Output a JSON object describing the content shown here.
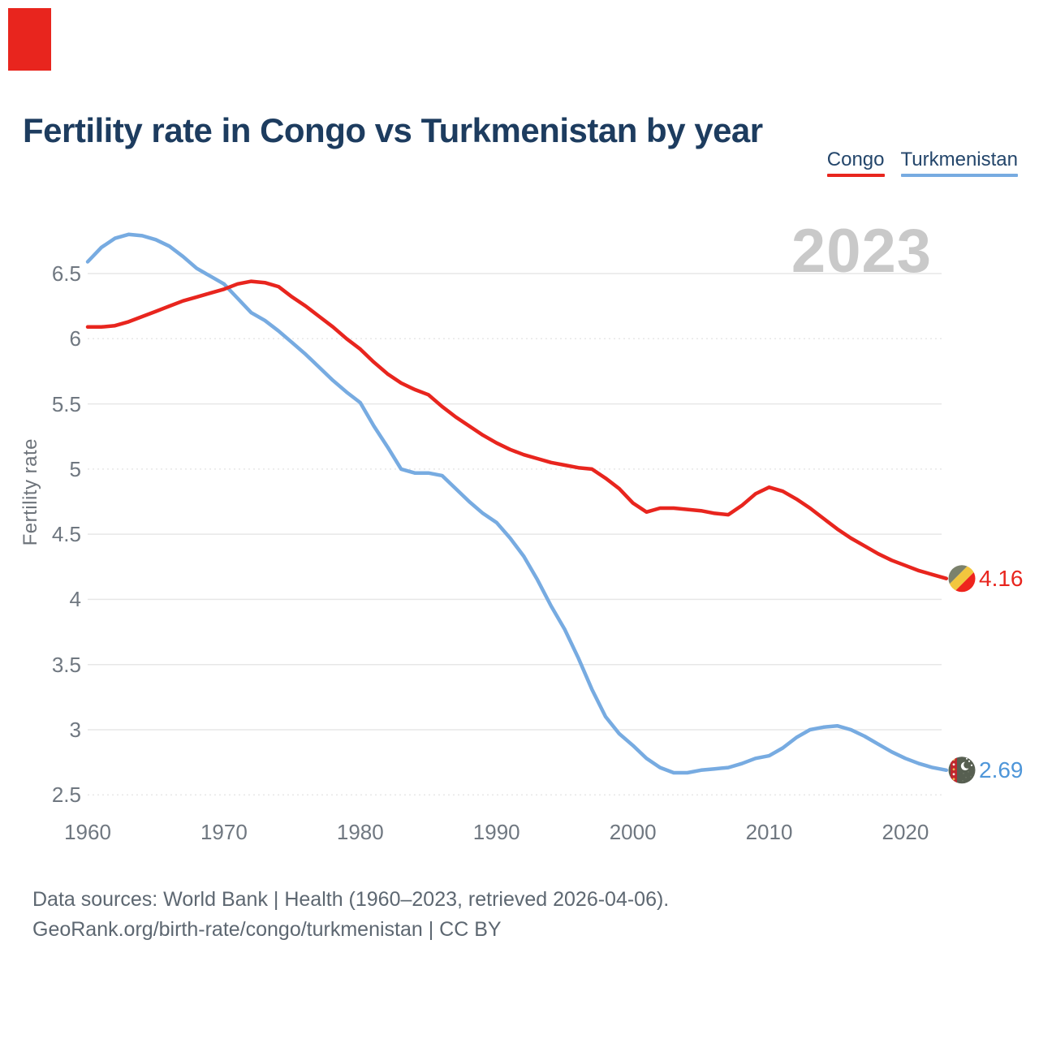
{
  "logo": {
    "color": "#e8251e"
  },
  "header": {
    "title": "Fertility rate in Congo vs Turkmenistan by year"
  },
  "legend": [
    {
      "label": "Congo",
      "color": "#e8251e"
    },
    {
      "label": "Turkmenistan",
      "color": "#77abe1"
    }
  ],
  "watermark": {
    "text": "2023"
  },
  "footer": {
    "line1": "Data sources: World Bank | Health (1960–2023, retrieved 2026-04-06).",
    "line2": "GeoRank.org/birth-rate/congo/turkmenistan | CC BY"
  },
  "chart_data": {
    "type": "line",
    "title": "Fertility rate in Congo vs Turkmenistan by year",
    "xlabel": "",
    "ylabel": "Fertility rate",
    "x_range": [
      1960,
      2023
    ],
    "ylim": [
      2.35,
      6.85
    ],
    "yticks": [
      "6.5",
      "6",
      "5.5",
      "5",
      "4.5",
      "4",
      "3.5",
      "3",
      "2.5"
    ],
    "dashed_yticks": [
      "6",
      "5",
      "2.5"
    ],
    "xticks": [
      1960,
      1970,
      1980,
      1990,
      2000,
      2010,
      2020
    ],
    "grid": "horizontal",
    "legend_position": "top-right",
    "x": [
      1960,
      1961,
      1962,
      1963,
      1964,
      1965,
      1966,
      1967,
      1968,
      1969,
      1970,
      1971,
      1972,
      1973,
      1974,
      1975,
      1976,
      1977,
      1978,
      1979,
      1980,
      1981,
      1982,
      1983,
      1984,
      1985,
      1986,
      1987,
      1988,
      1989,
      1990,
      1991,
      1992,
      1993,
      1994,
      1995,
      1996,
      1997,
      1998,
      1999,
      2000,
      2001,
      2002,
      2003,
      2004,
      2005,
      2006,
      2007,
      2008,
      2009,
      2010,
      2011,
      2012,
      2013,
      2014,
      2015,
      2016,
      2017,
      2018,
      2019,
      2020,
      2021,
      2022,
      2023
    ],
    "series": [
      {
        "name": "Congo",
        "color": "#e8251e",
        "label_color": "#e8251e",
        "end_label": "4.16",
        "values": [
          6.09,
          6.09,
          6.1,
          6.13,
          6.17,
          6.21,
          6.25,
          6.29,
          6.32,
          6.35,
          6.38,
          6.42,
          6.44,
          6.43,
          6.4,
          6.32,
          6.25,
          6.17,
          6.09,
          6.0,
          5.92,
          5.82,
          5.73,
          5.66,
          5.61,
          5.57,
          5.48,
          5.4,
          5.33,
          5.26,
          5.2,
          5.15,
          5.11,
          5.08,
          5.05,
          5.03,
          5.01,
          5.0,
          4.93,
          4.85,
          4.74,
          4.67,
          4.7,
          4.7,
          4.69,
          4.68,
          4.66,
          4.65,
          4.72,
          4.81,
          4.86,
          4.83,
          4.77,
          4.7,
          4.62,
          4.54,
          4.47,
          4.41,
          4.35,
          4.3,
          4.26,
          4.22,
          4.19,
          4.16
        ]
      },
      {
        "name": "Turkmenistan",
        "color": "#77abe1",
        "label_color": "#4e96d9",
        "end_label": "2.69",
        "values": [
          6.59,
          6.7,
          6.77,
          6.8,
          6.79,
          6.76,
          6.71,
          6.63,
          6.54,
          6.48,
          6.42,
          6.31,
          6.2,
          6.14,
          6.06,
          5.97,
          5.88,
          5.78,
          5.68,
          5.59,
          5.51,
          5.33,
          5.17,
          5.0,
          4.97,
          4.97,
          4.95,
          4.85,
          4.75,
          4.66,
          4.59,
          4.47,
          4.33,
          4.15,
          3.95,
          3.77,
          3.55,
          3.31,
          3.1,
          2.97,
          2.88,
          2.78,
          2.71,
          2.67,
          2.67,
          2.69,
          2.7,
          2.71,
          2.74,
          2.78,
          2.8,
          2.86,
          2.94,
          3.0,
          3.02,
          3.03,
          3.0,
          2.95,
          2.89,
          2.83,
          2.78,
          2.74,
          2.71,
          2.69
        ]
      }
    ]
  }
}
